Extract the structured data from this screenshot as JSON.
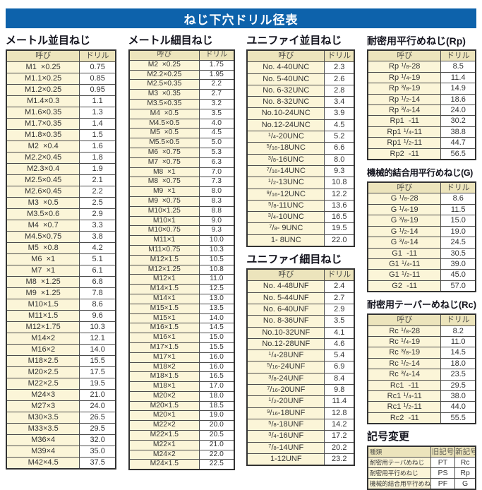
{
  "title": "ねじ下穴ドリル径表",
  "col_headers": {
    "name": "呼び",
    "drill": "ドリル"
  },
  "colors": {
    "header_bar": "#0d62ab",
    "table_header_bg": "#ece4bc",
    "name_cell_bg": "#fbf5d8",
    "border": "#4d4d4d"
  },
  "sections": {
    "metric_coarse": {
      "title": "メートル並目ねじ",
      "rows": [
        [
          "M1  ×0.25",
          "0.75"
        ],
        [
          "M1.1×0.25",
          "0.85"
        ],
        [
          "M1.2×0.25",
          "0.95"
        ],
        [
          "M1.4×0.3",
          "1.1"
        ],
        [
          "M1.6×0.35",
          "1.3"
        ],
        [
          "M1.7×0.35",
          "1.4"
        ],
        [
          "M1.8×0.35",
          "1.5"
        ],
        [
          "M2  ×0.4",
          "1.6"
        ],
        [
          "M2.2×0.45",
          "1.8"
        ],
        [
          "M2.3×0.4",
          "1.9"
        ],
        [
          "M2.5×0.45",
          "2.1"
        ],
        [
          "M2.6×0.45",
          "2.2"
        ],
        [
          "M3  ×0.5",
          "2.5"
        ],
        [
          "M3.5×0.6",
          "2.9"
        ],
        [
          "M4  ×0.7",
          "3.3"
        ],
        [
          "M4.5×0.75",
          "3.8"
        ],
        [
          "M5  ×0.8",
          "4.2"
        ],
        [
          "M6  ×1",
          "5.1"
        ],
        [
          "M7  ×1",
          "6.1"
        ],
        [
          "M8  ×1.25",
          "6.8"
        ],
        [
          "M9  ×1.25",
          "7.8"
        ],
        [
          "M10×1.5",
          "8.6"
        ],
        [
          "M11×1.5",
          "9.6"
        ],
        [
          "M12×1.75",
          "10.3"
        ],
        [
          "M14×2",
          "12.1"
        ],
        [
          "M16×2",
          "14.0"
        ],
        [
          "M18×2.5",
          "15.5"
        ],
        [
          "M20×2.5",
          "17.5"
        ],
        [
          "M22×2.5",
          "19.5"
        ],
        [
          "M24×3",
          "21.0"
        ],
        [
          "M27×3",
          "24.0"
        ],
        [
          "M30×3.5",
          "26.5"
        ],
        [
          "M33×3.5",
          "29.5"
        ],
        [
          "M36×4",
          "32.0"
        ],
        [
          "M39×4",
          "35.0"
        ],
        [
          "M42×4.5",
          "37.5"
        ]
      ]
    },
    "metric_fine": {
      "title": "メートル細目ねじ",
      "rows": [
        [
          "M2  ×0.25",
          "1.75"
        ],
        [
          "M2.2×0.25",
          "1.95"
        ],
        [
          "M2.5×0.35",
          "2.2"
        ],
        [
          "M3  ×0.35",
          "2.7"
        ],
        [
          "M3.5×0.35",
          "3.2"
        ],
        [
          "M4  ×0.5",
          "3.5"
        ],
        [
          "M4.5×0.5",
          "4.0"
        ],
        [
          "M5  ×0.5",
          "4.5"
        ],
        [
          "M5.5×0.5",
          "5.0"
        ],
        [
          "M6  ×0.75",
          "5.3"
        ],
        [
          "M7  ×0.75",
          "6.3"
        ],
        [
          "M8  ×1",
          "7.0"
        ],
        [
          "M8  ×0.75",
          "7.3"
        ],
        [
          "M9  ×1",
          "8.0"
        ],
        [
          "M9  ×0.75",
          "8.3"
        ],
        [
          "M10×1.25",
          "8.8"
        ],
        [
          "M10×1",
          "9.0"
        ],
        [
          "M10×0.75",
          "9.3"
        ],
        [
          "M11×1",
          "10.0"
        ],
        [
          "M11×0.75",
          "10.3"
        ],
        [
          "M12×1.5",
          "10.5"
        ],
        [
          "M12×1.25",
          "10.8"
        ],
        [
          "M12×1",
          "11.0"
        ],
        [
          "M14×1.5",
          "12.5"
        ],
        [
          "M14×1",
          "13.0"
        ],
        [
          "M15×1.5",
          "13.5"
        ],
        [
          "M15×1",
          "14.0"
        ],
        [
          "M16×1.5",
          "14.5"
        ],
        [
          "M16×1",
          "15.0"
        ],
        [
          "M17×1.5",
          "15.5"
        ],
        [
          "M17×1",
          "16.0"
        ],
        [
          "M18×2",
          "16.0"
        ],
        [
          "M18×1.5",
          "16.5"
        ],
        [
          "M18×1",
          "17.0"
        ],
        [
          "M20×2",
          "18.0"
        ],
        [
          "M20×1.5",
          "18.5"
        ],
        [
          "M20×1",
          "19.0"
        ],
        [
          "M22×2",
          "20.0"
        ],
        [
          "M22×1.5",
          "20.5"
        ],
        [
          "M22×1",
          "21.0"
        ],
        [
          "M24×2",
          "22.0"
        ],
        [
          "M24×1.5",
          "22.5"
        ]
      ]
    },
    "unified_coarse": {
      "title": "ユニファイ並目ねじ",
      "rows": [
        [
          "No. 4-40UNC",
          "2.3"
        ],
        [
          "No. 5-40UNC",
          "2.6"
        ],
        [
          "No. 6-32UNC",
          "2.8"
        ],
        [
          "No. 8-32UNC",
          "3.4"
        ],
        [
          "No.10-24UNC",
          "3.9"
        ],
        [
          "No.12-24UNC",
          "4.5"
        ],
        [
          "1/4-20UNC",
          "5.2"
        ],
        [
          "5/16-18UNC",
          "6.6"
        ],
        [
          "3/8-16UNC",
          "8.0"
        ],
        [
          "7/16-14UNC",
          "9.3"
        ],
        [
          "1/2-13UNC",
          "10.8"
        ],
        [
          "9/16-12UNC",
          "12.2"
        ],
        [
          "5/8-11UNC",
          "13.6"
        ],
        [
          "3/4-10UNC",
          "16.5"
        ],
        [
          "7/8- 9UNC",
          "19.5"
        ],
        [
          "1- 8UNC",
          "22.0"
        ]
      ]
    },
    "unified_fine": {
      "title": "ユニファイ細目ねじ",
      "rows": [
        [
          "No. 4-48UNF",
          "2.4"
        ],
        [
          "No. 5-44UNF",
          "2.7"
        ],
        [
          "No. 6-40UNF",
          "2.9"
        ],
        [
          "No. 8-36UNF",
          "3.5"
        ],
        [
          "No.10-32UNF",
          "4.1"
        ],
        [
          "No.12-28UNF",
          "4.6"
        ],
        [
          "1/4-28UNF",
          "5.4"
        ],
        [
          "5/16-24UNF",
          "6.9"
        ],
        [
          "3/8-24UNF",
          "8.4"
        ],
        [
          "7/16-20UNF",
          "9.8"
        ],
        [
          "1/2-20UNF",
          "11.4"
        ],
        [
          "9/16-18UNF",
          "12.8"
        ],
        [
          "5/8-18UNF",
          "14.2"
        ],
        [
          "3/4-16UNF",
          "17.2"
        ],
        [
          "7/8-14UNF",
          "20.2"
        ],
        [
          "1-12UNF",
          "23.2"
        ]
      ]
    },
    "rp": {
      "title": "耐密用平行めねじ(Rp)",
      "rows": [
        [
          "Rp 1/8-28",
          "8.5"
        ],
        [
          "Rp 1/4-19",
          "11.4"
        ],
        [
          "Rp 3/8-19",
          "14.9"
        ],
        [
          "Rp 1/2-14",
          "18.6"
        ],
        [
          "Rp 3/4-14",
          "24.0"
        ],
        [
          "Rp1  -11",
          "30.2"
        ],
        [
          "Rp1 1/4-11",
          "38.8"
        ],
        [
          "Rp1 1/2-11",
          "44.7"
        ],
        [
          "Rp2  -11",
          "56.5"
        ]
      ]
    },
    "g": {
      "title": "機械的結合用平行めねじ(G)",
      "rows": [
        [
          "G 1/8-28",
          "8.6"
        ],
        [
          "G 1/4-19",
          "11.5"
        ],
        [
          "G 3/8-19",
          "15.0"
        ],
        [
          "G 1/2-14",
          "19.0"
        ],
        [
          "G 3/4-14",
          "24.5"
        ],
        [
          "G1  -11",
          "30.5"
        ],
        [
          "G1 1/4-11",
          "39.0"
        ],
        [
          "G1 1/2-11",
          "45.0"
        ],
        [
          "G2  -11",
          "57.0"
        ]
      ]
    },
    "rc": {
      "title": "耐密用テーパーめねじ(Rc)",
      "rows": [
        [
          "Rc 1/8-28",
          "8.2"
        ],
        [
          "Rc 1/4-19",
          "11.0"
        ],
        [
          "Rc 3/8-19",
          "14.5"
        ],
        [
          "Rc 1/2-14",
          "18.0"
        ],
        [
          "Rc 3/4-14",
          "23.5"
        ],
        [
          "Rc1  -11",
          "29.5"
        ],
        [
          "Rc1 1/4-11",
          "38.0"
        ],
        [
          "Rc1 1/2-11",
          "44.0"
        ],
        [
          "Rc2  -11",
          "55.5"
        ]
      ]
    },
    "symbol_change": {
      "title": "記号変更",
      "headers": [
        "種類",
        "旧記号",
        "新記号"
      ],
      "rows": [
        [
          "耐密用テーパめねじ",
          "PT",
          "Rc"
        ],
        [
          "耐密用平行めねじ",
          "PS",
          "Rp"
        ],
        [
          "機械的結合用平行めねじ",
          "PF",
          "G"
        ]
      ]
    }
  }
}
